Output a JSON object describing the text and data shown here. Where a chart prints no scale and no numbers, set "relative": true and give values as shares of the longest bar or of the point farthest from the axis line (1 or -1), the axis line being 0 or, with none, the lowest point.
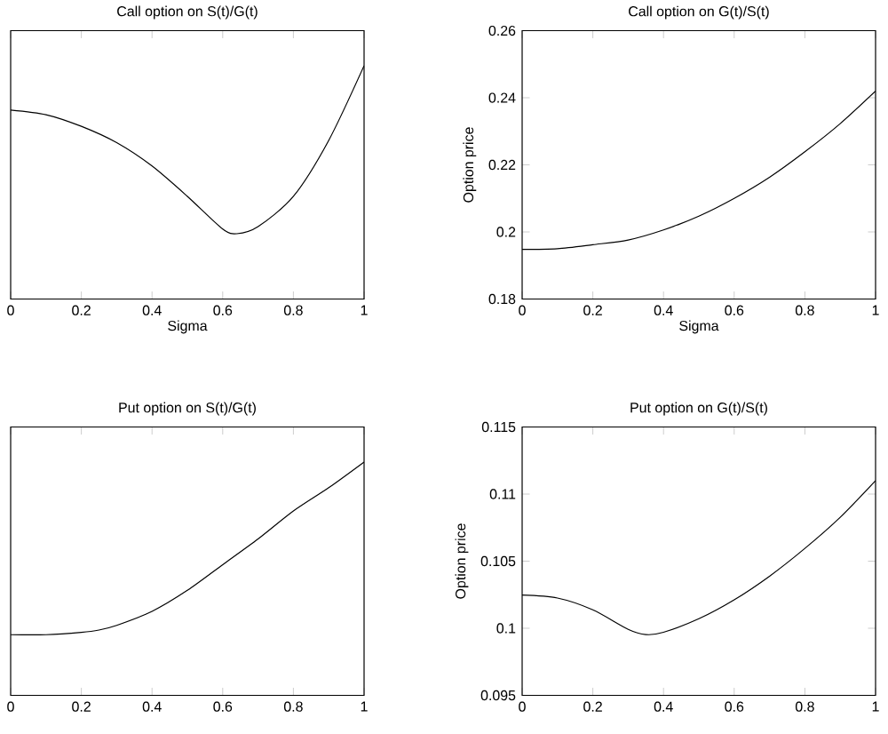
{
  "chart_data": [
    {
      "type": "line",
      "title": "Call option on S(t)/G(t)",
      "xlabel": "Sigma",
      "relative": true,
      "tick_labels": "x",
      "xlim": [
        0,
        1
      ],
      "xticks": [
        0,
        0.2,
        0.4,
        0.6,
        0.8,
        1
      ],
      "x": [
        0,
        0.1,
        0.2,
        0.3,
        0.4,
        0.5,
        0.6,
        0.64,
        0.7,
        0.8,
        0.9,
        1
      ],
      "series": [
        {
          "color": "#000000",
          "values": [
            0.81,
            0.79,
            0.74,
            0.67,
            0.57,
            0.44,
            0.3,
            0.28,
            0.31,
            0.44,
            0.68,
            1
          ]
        }
      ]
    },
    {
      "type": "line",
      "title": "Call option on G(t)/S(t)",
      "xlabel": "Sigma",
      "ylabel": "Option price",
      "xlim": [
        0,
        1
      ],
      "xticks": [
        0,
        0.2,
        0.4,
        0.6,
        0.8,
        1
      ],
      "ylim": [
        0.18,
        0.26
      ],
      "yticks": [
        0.18,
        0.2,
        0.22,
        0.24,
        0.26
      ],
      "x": [
        0,
        0.1,
        0.2,
        0.3,
        0.4,
        0.5,
        0.6,
        0.7,
        0.8,
        0.9,
        1
      ],
      "series": [
        {
          "color": "#000000",
          "values": [
            0.1948,
            0.195,
            0.1962,
            0.1976,
            0.2006,
            0.2047,
            0.21,
            0.2163,
            0.2239,
            0.2323,
            0.242
          ]
        }
      ]
    },
    {
      "type": "line",
      "title": "Put option on S(t)/G(t)",
      "relative": true,
      "tick_labels": "x",
      "xlim": [
        0,
        1
      ],
      "xticks": [
        0,
        0.2,
        0.4,
        0.6,
        0.8,
        1
      ],
      "x": [
        0,
        0.1,
        0.2,
        0.25,
        0.3,
        0.4,
        0.5,
        0.6,
        0.7,
        0.8,
        0.9,
        1
      ],
      "series": [
        {
          "color": "#000000",
          "values": [
            0.26,
            0.26,
            0.27,
            0.28,
            0.3,
            0.36,
            0.45,
            0.56,
            0.67,
            0.79,
            0.89,
            1
          ]
        }
      ]
    },
    {
      "type": "line",
      "title": "Put option on G(t)/S(t)",
      "ylabel": "Option price",
      "xlim": [
        0,
        1
      ],
      "xticks": [
        0,
        0.2,
        0.4,
        0.6,
        0.8,
        1
      ],
      "ylim": [
        0.095,
        0.115
      ],
      "yticks": [
        0.095,
        0.1,
        0.105,
        0.11,
        0.115
      ],
      "x": [
        0,
        0.1,
        0.2,
        0.3,
        0.35,
        0.4,
        0.5,
        0.6,
        0.7,
        0.8,
        0.9,
        1
      ],
      "series": [
        {
          "color": "#000000",
          "values": [
            0.10247,
            0.10225,
            0.10137,
            0.09992,
            0.09953,
            0.0997,
            0.10071,
            0.10212,
            0.10388,
            0.10595,
            0.10827,
            0.111
          ]
        }
      ]
    }
  ]
}
